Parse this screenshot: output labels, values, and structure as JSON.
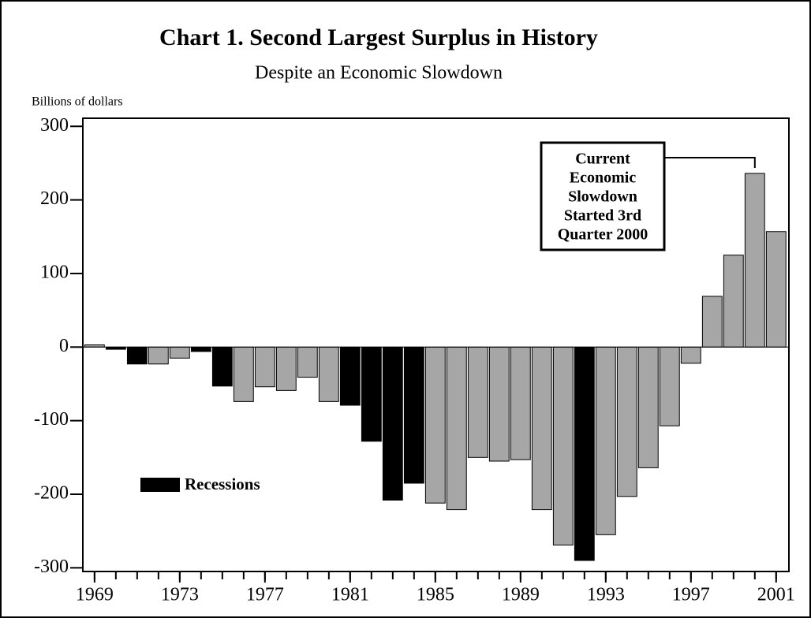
{
  "chart_data": {
    "type": "bar",
    "title": "Chart 1.  Second Largest Surplus in History",
    "subtitle": "Despite an Economic Slowdown",
    "y_label": "Billions of dollars",
    "x": [
      1969,
      1970,
      1971,
      1972,
      1973,
      1974,
      1975,
      1976,
      1977,
      1978,
      1979,
      1980,
      1981,
      1982,
      1983,
      1984,
      1985,
      1986,
      1987,
      1988,
      1989,
      1990,
      1991,
      1992,
      1993,
      1994,
      1995,
      1996,
      1997,
      1998,
      1999,
      2000,
      2001
    ],
    "values": [
      3,
      -3,
      -23,
      -23,
      -15,
      -6,
      -53,
      -74,
      -54,
      -59,
      -41,
      -74,
      -79,
      -128,
      -208,
      -185,
      -212,
      -221,
      -150,
      -155,
      -153,
      -221,
      -269,
      -290,
      -255,
      -203,
      -164,
      -107,
      -22,
      69,
      125,
      236,
      157
    ],
    "colors": [
      "#a6a6a6",
      "#000000",
      "#000000",
      "#a6a6a6",
      "#a6a6a6",
      "#000000",
      "#000000",
      "#a6a6a6",
      "#a6a6a6",
      "#a6a6a6",
      "#a6a6a6",
      "#a6a6a6",
      "#000000",
      "#000000",
      "#000000",
      "#000000",
      "#a6a6a6",
      "#a6a6a6",
      "#a6a6a6",
      "#a6a6a6",
      "#a6a6a6",
      "#a6a6a6",
      "#a6a6a6",
      "#000000",
      "#a6a6a6",
      "#a6a6a6",
      "#a6a6a6",
      "#a6a6a6",
      "#a6a6a6",
      "#a6a6a6",
      "#a6a6a6",
      "#a6a6a6",
      "#a6a6a6"
    ],
    "legend": {
      "label": "Recessions",
      "color": "#000000"
    },
    "annotation": {
      "lines": [
        "Current",
        "Economic",
        "Slowdown",
        "Started 3rd",
        "Quarter 2000"
      ],
      "x": 2000
    },
    "xlim": [
      1968.45,
      2001.6
    ],
    "xticks": [
      1969,
      1973,
      1977,
      1981,
      1985,
      1989,
      1993,
      1997,
      2001
    ],
    "ylim": [
      -305,
      311
    ],
    "yticks": [
      -300,
      -200,
      -100,
      0,
      100,
      200,
      300
    ]
  }
}
